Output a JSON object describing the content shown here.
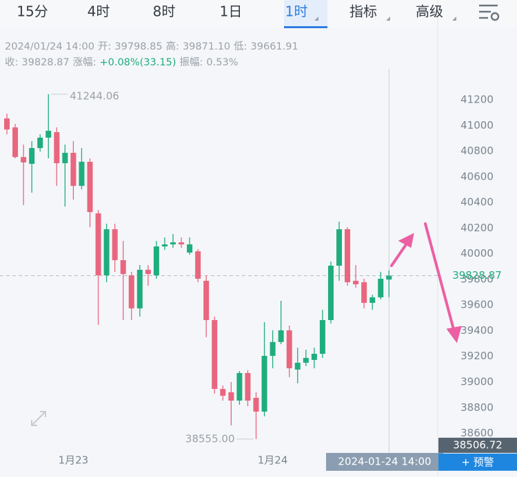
{
  "tabs": [
    "15分",
    "4时",
    "8时",
    "1日",
    "1时",
    "指标",
    "高级"
  ],
  "info": {
    "row1": [
      "2024/01/24 14:00",
      "开:",
      "39798.85",
      "高:",
      "39871.10",
      "低:",
      "39661.91"
    ],
    "row2": [
      "收:",
      "39828.87",
      "涨幅:",
      "+0.08%(33.15)",
      "振幅:",
      "0.53%"
    ]
  },
  "alert_button": "+ 预警",
  "chart_data": {
    "type": "candlestick",
    "categories": [
      null,
      null,
      null,
      null,
      null,
      null,
      null,
      null,
      "1月23",
      null,
      null,
      null,
      null,
      null,
      null,
      null,
      null,
      null,
      null,
      null,
      null,
      null,
      null,
      null,
      null,
      null,
      null,
      null,
      null,
      null,
      null,
      null,
      "1月24",
      null,
      null,
      null,
      null,
      null,
      null,
      null,
      null,
      null,
      null,
      null,
      null,
      null,
      null
    ],
    "open": [
      41055,
      40985,
      40754,
      40701,
      40824,
      40905,
      40948,
      40706,
      40787,
      40529,
      40717,
      40315,
      39832,
      40191,
      39950,
      39832,
      39574,
      39875,
      39832,
      40057,
      40073,
      40089,
      40009,
      40019,
      39789,
      39483,
      38946,
      38920,
      38855,
      39070,
      38877,
      38769,
      39204,
      39312,
      39403,
      39097,
      39150,
      39172,
      39220,
      39483,
      39907,
      40191,
      39789,
      39778,
      39617,
      39660,
      39798.85
    ],
    "high": [
      41093,
      41012,
      40851,
      40878,
      40931,
      41244.06,
      40985,
      40851,
      40878,
      40824,
      40744,
      40341,
      40234,
      40234,
      40100,
      39859,
      39912,
      39912,
      40100,
      40127,
      40154,
      40127,
      40127,
      40036,
      39832,
      39510,
      38973,
      39000,
      39086,
      39092,
      38920,
      39467,
      39403,
      39633,
      39440,
      39268,
      39252,
      39268,
      39563,
      39939,
      40250,
      40207,
      39912,
      39805,
      39681,
      39859,
      39871.1
    ],
    "low": [
      40931,
      40744,
      40379,
      40476,
      40797,
      40744,
      40529,
      40368,
      40422,
      40502,
      40207,
      39445,
      39778,
      39859,
      39483,
      39483,
      39510,
      39751,
      39805,
      40030,
      40046,
      40046,
      39993,
      39778,
      39349,
      38909,
      38855,
      38662,
      38823,
      38812,
      38555,
      38732,
      39107,
      39295,
      39038,
      38990,
      39124,
      39107,
      39188,
      39456,
      39789,
      39751,
      39735,
      39574,
      39563,
      39644,
      39661.91
    ],
    "close": [
      40969,
      40754,
      40712,
      40824,
      40905,
      40959,
      40706,
      40787,
      40529,
      40717,
      40325,
      39832,
      40191,
      39950,
      39842,
      39574,
      39875,
      39842,
      40057,
      40073,
      40089,
      40073,
      40073,
      39805,
      39483,
      38946,
      38893,
      38855,
      39070,
      38855,
      38769,
      39204,
      39312,
      39403,
      39107,
      39150,
      39188,
      39220,
      39483,
      39907,
      40191,
      39778,
      39762,
      39617,
      39660,
      39805,
      39828.87
    ],
    "up_color": "#20ad7d",
    "down_color": "#e9667f",
    "ylim": [
      38517,
      41388
    ],
    "yticks": [
      41200,
      41000,
      40800,
      40600,
      40400,
      40200,
      40000,
      39800,
      39600,
      39400,
      39200,
      39000,
      38800,
      38600
    ],
    "grid": false,
    "high_annotation": {
      "value": 41244.06,
      "label": "41244.06"
    },
    "low_annotation": {
      "value": 38555,
      "label": "38555.00"
    },
    "last_price": {
      "value": 39828.87,
      "label": "39828.87"
    },
    "cursor_price": {
      "value": 38506.72,
      "label": "38506.72"
    },
    "crosshair_label": "2024-01-24 14:00"
  }
}
